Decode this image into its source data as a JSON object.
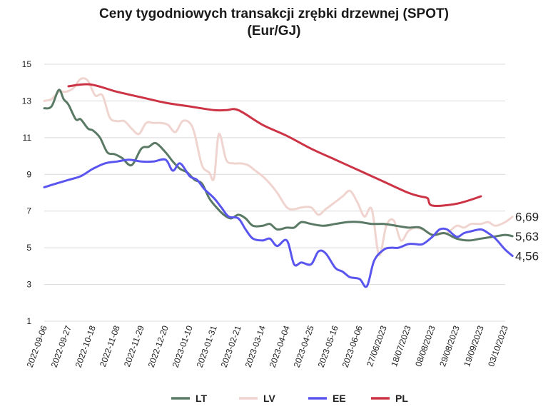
{
  "chart_data": {
    "type": "line",
    "title": "Ceny tygodniowych transakcji zrębki drzewnej (SPOT)",
    "subtitle": "(Eur/GJ)",
    "ylim": [
      1,
      15
    ],
    "y_ticks": [
      "15",
      "13",
      "11",
      "9",
      "7",
      "5",
      "3",
      "1"
    ],
    "grid": "horizontal",
    "legend_position": "bottom",
    "x_ticks": [
      "2022-09-06",
      "2022-09-27",
      "2022-10-18",
      "2022-11-08",
      "2022-11-29",
      "2022-12-20",
      "2023-01-10",
      "2023-01-31",
      "2023-02-21",
      "2023-03-14",
      "2023-04-04",
      "2023-04-25",
      "2023-05-16",
      "2023-06-06",
      "27/06/2023",
      "18/07/2023",
      "08/08/2023",
      "29/08/2023",
      "19/09/2023",
      "03/10/2023"
    ],
    "end_labels": [
      "6,69",
      "5,63",
      "4,56"
    ],
    "series": [
      {
        "name": "LT",
        "color": "#5a7a65",
        "x": [
          0,
          0.3,
          0.6,
          0.8,
          1.0,
          1.3,
          1.5,
          1.8,
          2.0,
          2.3,
          2.6,
          2.9,
          3.2,
          3.6,
          4.0,
          4.3,
          4.6,
          5.0,
          5.3,
          5.6,
          5.9,
          6.2,
          6.5,
          6.8,
          7.1,
          7.4,
          7.7,
          8.0,
          8.3,
          8.6,
          9.0,
          9.3,
          9.6,
          10.0,
          10.3,
          10.6,
          11.0,
          11.5,
          12.0,
          12.5,
          13.0,
          13.5,
          14.0,
          14.5,
          15.0,
          15.5,
          16.0,
          16.5,
          17.0,
          17.5,
          18.0,
          18.5,
          19.0,
          19.3
        ],
        "values": [
          12.6,
          12.7,
          13.6,
          13.1,
          12.8,
          12.0,
          12.0,
          11.5,
          11.4,
          11.0,
          10.2,
          10.1,
          9.9,
          9.5,
          10.4,
          10.5,
          10.7,
          10.2,
          9.7,
          9.3,
          9.1,
          8.7,
          8.5,
          7.7,
          7.2,
          6.8,
          6.6,
          6.8,
          6.6,
          6.2,
          6.2,
          6.3,
          6.0,
          6.1,
          6.1,
          6.4,
          6.3,
          6.2,
          6.3,
          6.4,
          6.4,
          6.3,
          6.3,
          6.2,
          6.1,
          6.1,
          5.7,
          5.8,
          5.5,
          5.4,
          5.5,
          5.6,
          5.7,
          5.63
        ]
      },
      {
        "name": "LV",
        "color": "#f0d4cf",
        "x": [
          0,
          0.3,
          0.6,
          0.9,
          1.2,
          1.5,
          1.8,
          2.1,
          2.4,
          2.7,
          3.0,
          3.3,
          3.6,
          3.9,
          4.2,
          4.5,
          4.8,
          5.1,
          5.4,
          5.7,
          6.0,
          6.2,
          6.5,
          6.8,
          7.0,
          7.2,
          7.5,
          7.8,
          8.1,
          8.4,
          8.7,
          9.0,
          9.3,
          9.6,
          10.0,
          10.3,
          10.6,
          11.0,
          11.3,
          11.6,
          12.0,
          12.3,
          12.6,
          12.9,
          13.2,
          13.5,
          13.8,
          14.1,
          14.4,
          14.7,
          15.0,
          15.3,
          15.6,
          16.0,
          16.3,
          16.6,
          17.0,
          17.3,
          17.6,
          18.0,
          18.3,
          18.6,
          19.0,
          19.3
        ],
        "values": [
          13.0,
          13.1,
          13.5,
          13.5,
          13.7,
          14.2,
          14.1,
          13.3,
          13.3,
          12.1,
          11.9,
          11.9,
          11.5,
          11.2,
          11.8,
          11.8,
          11.8,
          11.7,
          11.3,
          11.9,
          11.8,
          11.2,
          9.5,
          9.1,
          8.8,
          11.2,
          9.8,
          9.6,
          9.6,
          9.5,
          9.2,
          8.9,
          8.5,
          8.0,
          7.2,
          7.1,
          7.2,
          7.2,
          6.8,
          7.1,
          7.5,
          7.8,
          8.1,
          7.5,
          6.7,
          7.1,
          4.6,
          6.2,
          6.5,
          5.4,
          5.9,
          6.1,
          6.0,
          5.7,
          5.8,
          5.8,
          6.2,
          6.1,
          6.3,
          6.3,
          6.4,
          6.2,
          6.4,
          6.69
        ]
      },
      {
        "name": "EE",
        "color": "#5a55ee",
        "x": [
          0,
          0.5,
          1.0,
          1.5,
          2.0,
          2.5,
          3.0,
          3.5,
          4.0,
          4.5,
          5.0,
          5.3,
          5.6,
          6.0,
          6.3,
          6.6,
          7.0,
          7.3,
          7.6,
          8.0,
          8.3,
          8.6,
          9.0,
          9.3,
          9.6,
          10.0,
          10.3,
          10.6,
          11.0,
          11.3,
          11.6,
          12.0,
          12.3,
          12.6,
          13.0,
          13.3,
          13.6,
          14.0,
          14.3,
          14.6,
          15.0,
          15.3,
          15.6,
          16.0,
          16.3,
          16.6,
          17.0,
          17.3,
          17.6,
          18.0,
          18.3,
          18.6,
          19.0,
          19.3
        ],
        "values": [
          8.3,
          8.5,
          8.7,
          8.9,
          9.3,
          9.6,
          9.7,
          9.8,
          9.7,
          9.7,
          9.8,
          9.2,
          9.6,
          8.9,
          8.7,
          8.2,
          7.7,
          7.2,
          6.7,
          6.6,
          6.0,
          5.5,
          5.4,
          5.5,
          5.1,
          5.4,
          4.1,
          4.2,
          4.1,
          4.8,
          4.7,
          3.9,
          3.7,
          3.4,
          3.3,
          2.9,
          4.3,
          4.9,
          5.0,
          5.0,
          5.2,
          5.2,
          5.2,
          5.6,
          6.0,
          6.0,
          5.6,
          5.8,
          5.9,
          6.0,
          5.8,
          5.5,
          4.9,
          4.56
        ]
      },
      {
        "name": "PL",
        "color": "#cc3345",
        "x": [
          1.0,
          1.9,
          3.0,
          4.0,
          5.0,
          6.0,
          7.0,
          7.5,
          8.0,
          9.0,
          10.0,
          11.0,
          12.0,
          13.0,
          14.0,
          15.0,
          15.5,
          15.8,
          16.0,
          17.0,
          18.0
        ],
        "values": [
          13.8,
          13.9,
          13.5,
          13.2,
          12.9,
          12.7,
          12.5,
          12.5,
          12.5,
          11.7,
          11.1,
          10.4,
          9.8,
          9.2,
          8.6,
          8.0,
          7.8,
          7.7,
          7.3,
          7.4,
          7.8
        ]
      }
    ]
  }
}
